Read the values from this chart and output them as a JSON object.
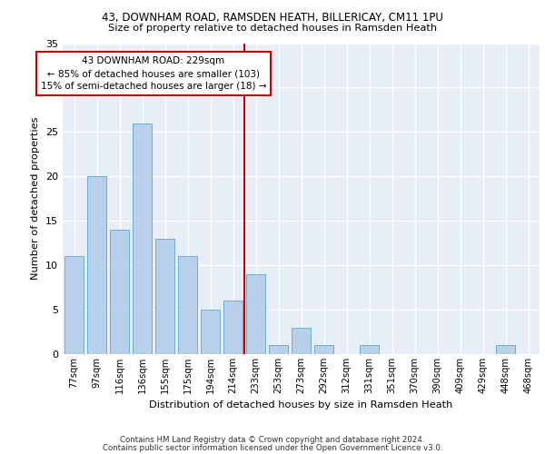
{
  "title1": "43, DOWNHAM ROAD, RAMSDEN HEATH, BILLERICAY, CM11 1PU",
  "title2": "Size of property relative to detached houses in Ramsden Heath",
  "xlabel": "Distribution of detached houses by size in Ramsden Heath",
  "ylabel": "Number of detached properties",
  "categories": [
    "77sqm",
    "97sqm",
    "116sqm",
    "136sqm",
    "155sqm",
    "175sqm",
    "194sqm",
    "214sqm",
    "233sqm",
    "253sqm",
    "273sqm",
    "292sqm",
    "312sqm",
    "331sqm",
    "351sqm",
    "370sqm",
    "390sqm",
    "409sqm",
    "429sqm",
    "448sqm",
    "468sqm"
  ],
  "values": [
    11,
    20,
    14,
    26,
    13,
    11,
    5,
    6,
    9,
    1,
    3,
    1,
    0,
    1,
    0,
    0,
    0,
    0,
    0,
    1,
    0
  ],
  "bar_color": "#b8d0ea",
  "bar_edge_color": "#6aaed6",
  "background_color": "#e8eef8",
  "grid_color": "#ffffff",
  "red_line_index": 8,
  "annotation_text": "43 DOWNHAM ROAD: 229sqm\n← 85% of detached houses are smaller (103)\n15% of semi-detached houses are larger (18) →",
  "annotation_box_facecolor": "#ffffff",
  "annotation_box_edgecolor": "#cc0000",
  "ylim": [
    0,
    35
  ],
  "yticks": [
    0,
    5,
    10,
    15,
    20,
    25,
    30,
    35
  ],
  "footer1": "Contains HM Land Registry data © Crown copyright and database right 2024.",
  "footer2": "Contains public sector information licensed under the Open Government Licence v3.0."
}
